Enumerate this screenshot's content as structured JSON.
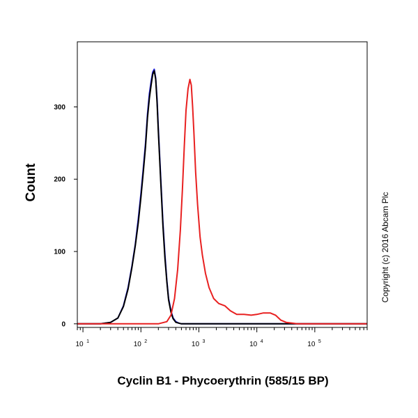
{
  "chart_data": {
    "type": "line",
    "title": "",
    "xlabel": "Cyclin B1 - Phycoerythrin (585/15 BP)",
    "ylabel": "Count",
    "x_scale": "log",
    "xlim": [
      8,
      800000
    ],
    "ylim": [
      -5,
      390
    ],
    "x_ticks": [
      {
        "value": 10,
        "base": "10",
        "exp": "1"
      },
      {
        "value": 100,
        "base": "10",
        "exp": "2"
      },
      {
        "value": 1000,
        "base": "10",
        "exp": "3"
      },
      {
        "value": 10000,
        "base": "10",
        "exp": "4"
      },
      {
        "value": 100000,
        "base": "10",
        "exp": "5"
      }
    ],
    "y_ticks": [
      0,
      100,
      200,
      300
    ],
    "grid": false,
    "legend": "none",
    "series": [
      {
        "color": "#2020e0",
        "x": [
          8,
          20,
          30,
          40,
          50,
          60,
          70,
          80,
          90,
          100,
          110,
          120,
          130,
          140,
          150,
          160,
          170,
          180,
          190,
          200,
          220,
          240,
          260,
          280,
          300,
          330,
          360,
          400,
          450,
          500,
          600,
          800000
        ],
        "y": [
          0,
          0,
          2,
          8,
          25,
          50,
          80,
          110,
          145,
          180,
          215,
          250,
          290,
          318,
          335,
          348,
          352,
          340,
          310,
          270,
          200,
          140,
          95,
          60,
          35,
          18,
          8,
          3,
          1,
          0,
          0,
          0
        ]
      },
      {
        "color": "#000000",
        "x": [
          8,
          20,
          30,
          40,
          50,
          60,
          70,
          80,
          90,
          100,
          110,
          120,
          130,
          140,
          150,
          160,
          170,
          180,
          190,
          200,
          220,
          240,
          260,
          280,
          300,
          330,
          360,
          400,
          450,
          500,
          600,
          800000
        ],
        "y": [
          0,
          0,
          2,
          8,
          24,
          48,
          78,
          108,
          140,
          175,
          210,
          245,
          285,
          312,
          330,
          345,
          350,
          338,
          305,
          265,
          195,
          135,
          90,
          58,
          33,
          16,
          7,
          2,
          1,
          0,
          0,
          0
        ]
      },
      {
        "color": "#e82020",
        "x": [
          8,
          200,
          280,
          330,
          380,
          430,
          480,
          520,
          560,
          600,
          650,
          700,
          740,
          780,
          820,
          880,
          950,
          1050,
          1150,
          1300,
          1500,
          1800,
          2200,
          2800,
          3500,
          4500,
          6000,
          8000,
          10000,
          13000,
          17000,
          21000,
          26000,
          32000,
          40000,
          50000,
          60000,
          800000
        ],
        "y": [
          0,
          0,
          3,
          12,
          35,
          75,
          130,
          185,
          245,
          295,
          325,
          338,
          330,
          300,
          265,
          210,
          165,
          120,
          95,
          70,
          50,
          35,
          28,
          25,
          18,
          13,
          13,
          12,
          13,
          15,
          15,
          12,
          5,
          2,
          1,
          0,
          0,
          0
        ]
      }
    ]
  },
  "copyright": "Copyright (c) 2016 Abcam Plc"
}
